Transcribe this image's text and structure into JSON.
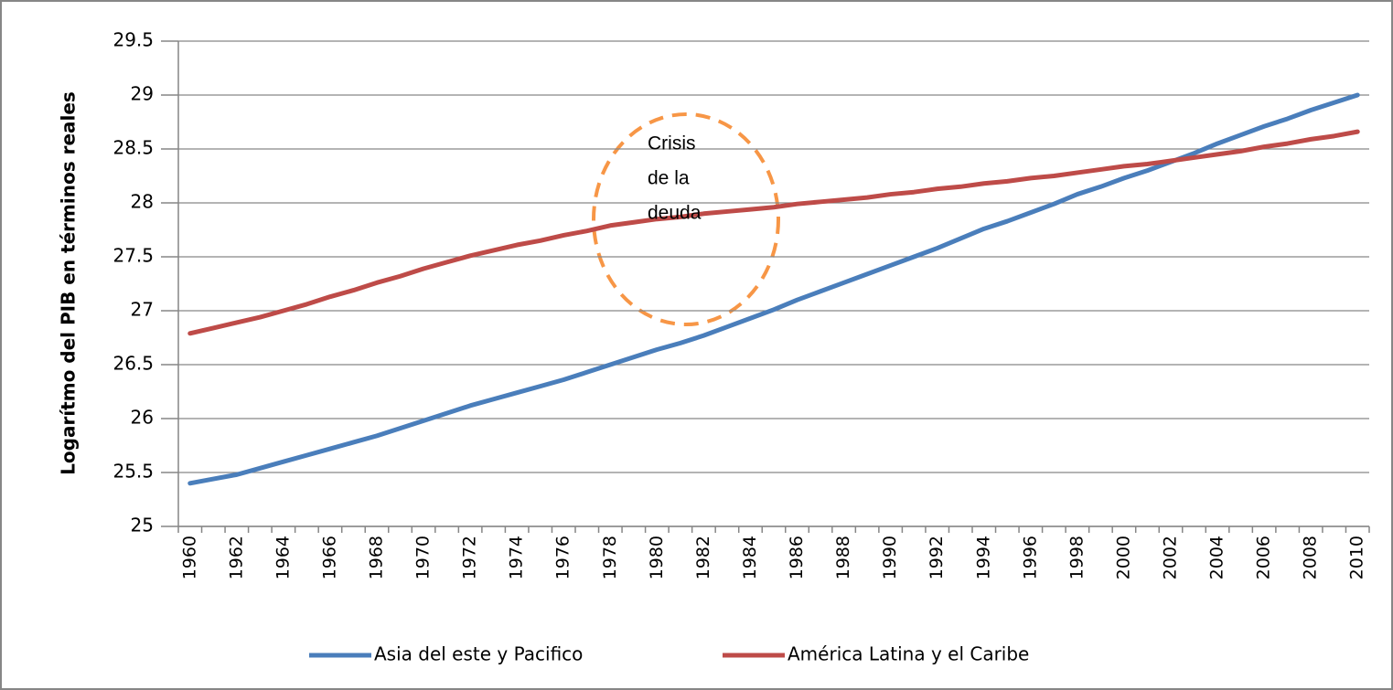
{
  "chart_data": {
    "type": "line",
    "ylabel": "Logarítmo del PIB en términos reales",
    "categories": [
      "1960",
      null,
      "1962",
      null,
      "1964",
      null,
      "1966",
      null,
      "1968",
      null,
      "1970",
      null,
      "1972",
      null,
      "1974",
      null,
      "1976",
      null,
      "1978",
      null,
      "1980",
      null,
      "1982",
      null,
      "1984",
      null,
      "1986",
      null,
      "1988",
      null,
      "1990",
      null,
      "1992",
      null,
      "1994",
      null,
      "1996",
      null,
      "1998",
      null,
      "2000",
      null,
      "2002",
      null,
      "2004",
      null,
      "2006",
      null,
      "2008",
      null,
      "2010"
    ],
    "series": [
      {
        "name": "Asia del este y Pacifico",
        "color": "#4a7ebb",
        "values": [
          25.4,
          25.44,
          25.48,
          25.54,
          25.6,
          25.66,
          25.72,
          25.78,
          25.84,
          25.91,
          25.98,
          26.05,
          26.12,
          26.18,
          26.24,
          26.3,
          26.36,
          26.43,
          26.5,
          26.57,
          26.64,
          26.7,
          26.77,
          26.85,
          26.93,
          27.01,
          27.1,
          27.18,
          27.26,
          27.34,
          27.42,
          27.5,
          27.58,
          27.67,
          27.76,
          27.83,
          27.91,
          27.99,
          28.08,
          28.15,
          28.23,
          28.3,
          28.38,
          28.46,
          28.55,
          28.63,
          28.71,
          28.78,
          28.86,
          28.93,
          29.0
        ]
      },
      {
        "name": "América Latina y el Caribe",
        "color": "#be4b48",
        "values": [
          26.79,
          26.84,
          26.89,
          26.94,
          27.0,
          27.06,
          27.13,
          27.19,
          27.26,
          27.32,
          27.39,
          27.45,
          27.51,
          27.56,
          27.61,
          27.65,
          27.7,
          27.74,
          27.79,
          27.82,
          27.85,
          27.87,
          27.9,
          27.92,
          27.94,
          27.96,
          27.99,
          28.01,
          28.03,
          28.05,
          28.08,
          28.1,
          28.13,
          28.15,
          28.18,
          28.2,
          28.23,
          28.25,
          28.28,
          28.31,
          28.34,
          28.36,
          28.39,
          28.42,
          28.45,
          28.48,
          28.52,
          28.55,
          28.59,
          28.62,
          28.66
        ]
      }
    ],
    "ylim": [
      25,
      29.5
    ],
    "yticks": [
      25,
      25.5,
      26,
      26.5,
      27,
      27.5,
      28,
      28.5,
      29,
      29.5
    ],
    "grid": true,
    "legend": "bottom",
    "annotation": {
      "lines": [
        "Crisis",
        "de la",
        "deuda"
      ]
    }
  }
}
